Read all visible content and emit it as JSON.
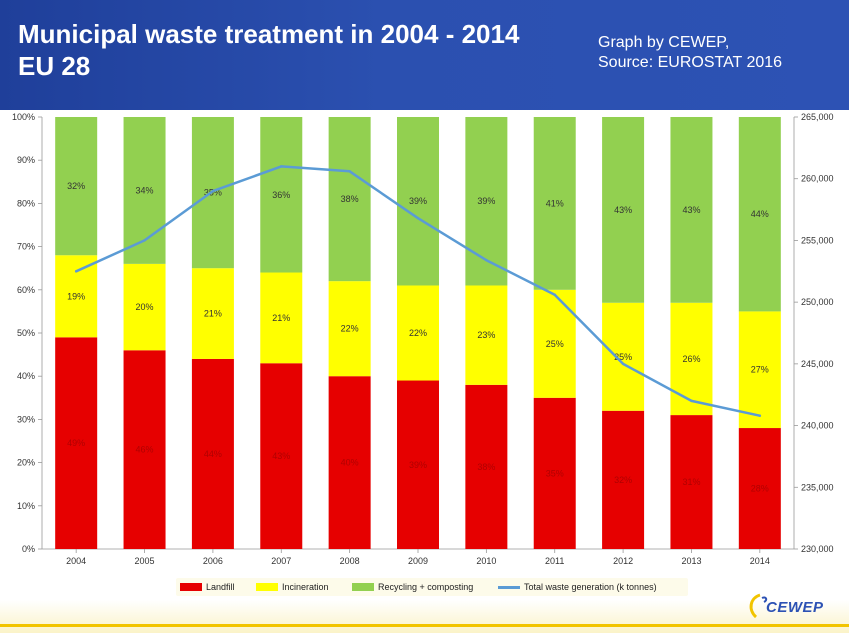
{
  "header": {
    "title": "Municipal waste treatment in 2004 - 2014\nEU 28",
    "subtitle": "Graph by CEWEP,\nSource: EUROSTAT 2016"
  },
  "logo": {
    "text": "CEWEP"
  },
  "colors": {
    "header_bg": "#2b50b0",
    "landfill": "#e60000",
    "incineration": "#ffff00",
    "recycling": "#92d050",
    "total_line": "#5b9bd5",
    "footer_accent": "#f2c400"
  },
  "chart_data": {
    "type": "bar",
    "stacked": true,
    "percent_stacked": true,
    "categories": [
      "2004",
      "2005",
      "2006",
      "2007",
      "2008",
      "2009",
      "2010",
      "2011",
      "2012",
      "2013",
      "2014"
    ],
    "series": [
      {
        "name": "Landfill",
        "values": [
          49,
          46,
          44,
          43,
          40,
          39,
          38,
          35,
          32,
          31,
          28
        ],
        "labels": [
          "49%",
          "46%",
          "44%",
          "43%",
          "40%",
          "39%",
          "38%",
          "35%",
          "32%",
          "31%",
          "28%"
        ]
      },
      {
        "name": "Incineration",
        "values": [
          19,
          20,
          21,
          21,
          22,
          22,
          23,
          25,
          25,
          26,
          27
        ],
        "labels": [
          "19%",
          "20%",
          "21%",
          "21%",
          "22%",
          "22%",
          "23%",
          "25%",
          "25%",
          "26%",
          "27%"
        ]
      },
      {
        "name": "Recycling + composting",
        "values": [
          32,
          34,
          35,
          36,
          38,
          39,
          39,
          41,
          43,
          43,
          44
        ],
        "labels": [
          "32%",
          "34%",
          "35%",
          "36%",
          "38%",
          "39%",
          "39%",
          "41%",
          "43%",
          "43%",
          "44%"
        ]
      }
    ],
    "line_series": {
      "name": "Total waste generation (k tonnes)",
      "axis": "right",
      "values": [
        252500,
        255000,
        259000,
        261000,
        260600,
        256800,
        253400,
        250600,
        245000,
        242000,
        240800
      ]
    },
    "left_axis": {
      "ylim": [
        0,
        100
      ],
      "tick_labels": [
        "0%",
        "10%",
        "20%",
        "30%",
        "40%",
        "50%",
        "60%",
        "70%",
        "80%",
        "90%",
        "100%"
      ]
    },
    "right_axis": {
      "ylim": [
        230000,
        265000
      ],
      "tick_labels": [
        "230,000",
        "235,000",
        "240,000",
        "245,000",
        "250,000",
        "255,000",
        "260,000",
        "265,000"
      ]
    },
    "grid": false,
    "legend_position": "bottom"
  },
  "legend": {
    "landfill": "Landfill",
    "incineration": "Incineration",
    "recycling": "Recycling + composting",
    "total": "Total waste generation (k tonnes)"
  }
}
